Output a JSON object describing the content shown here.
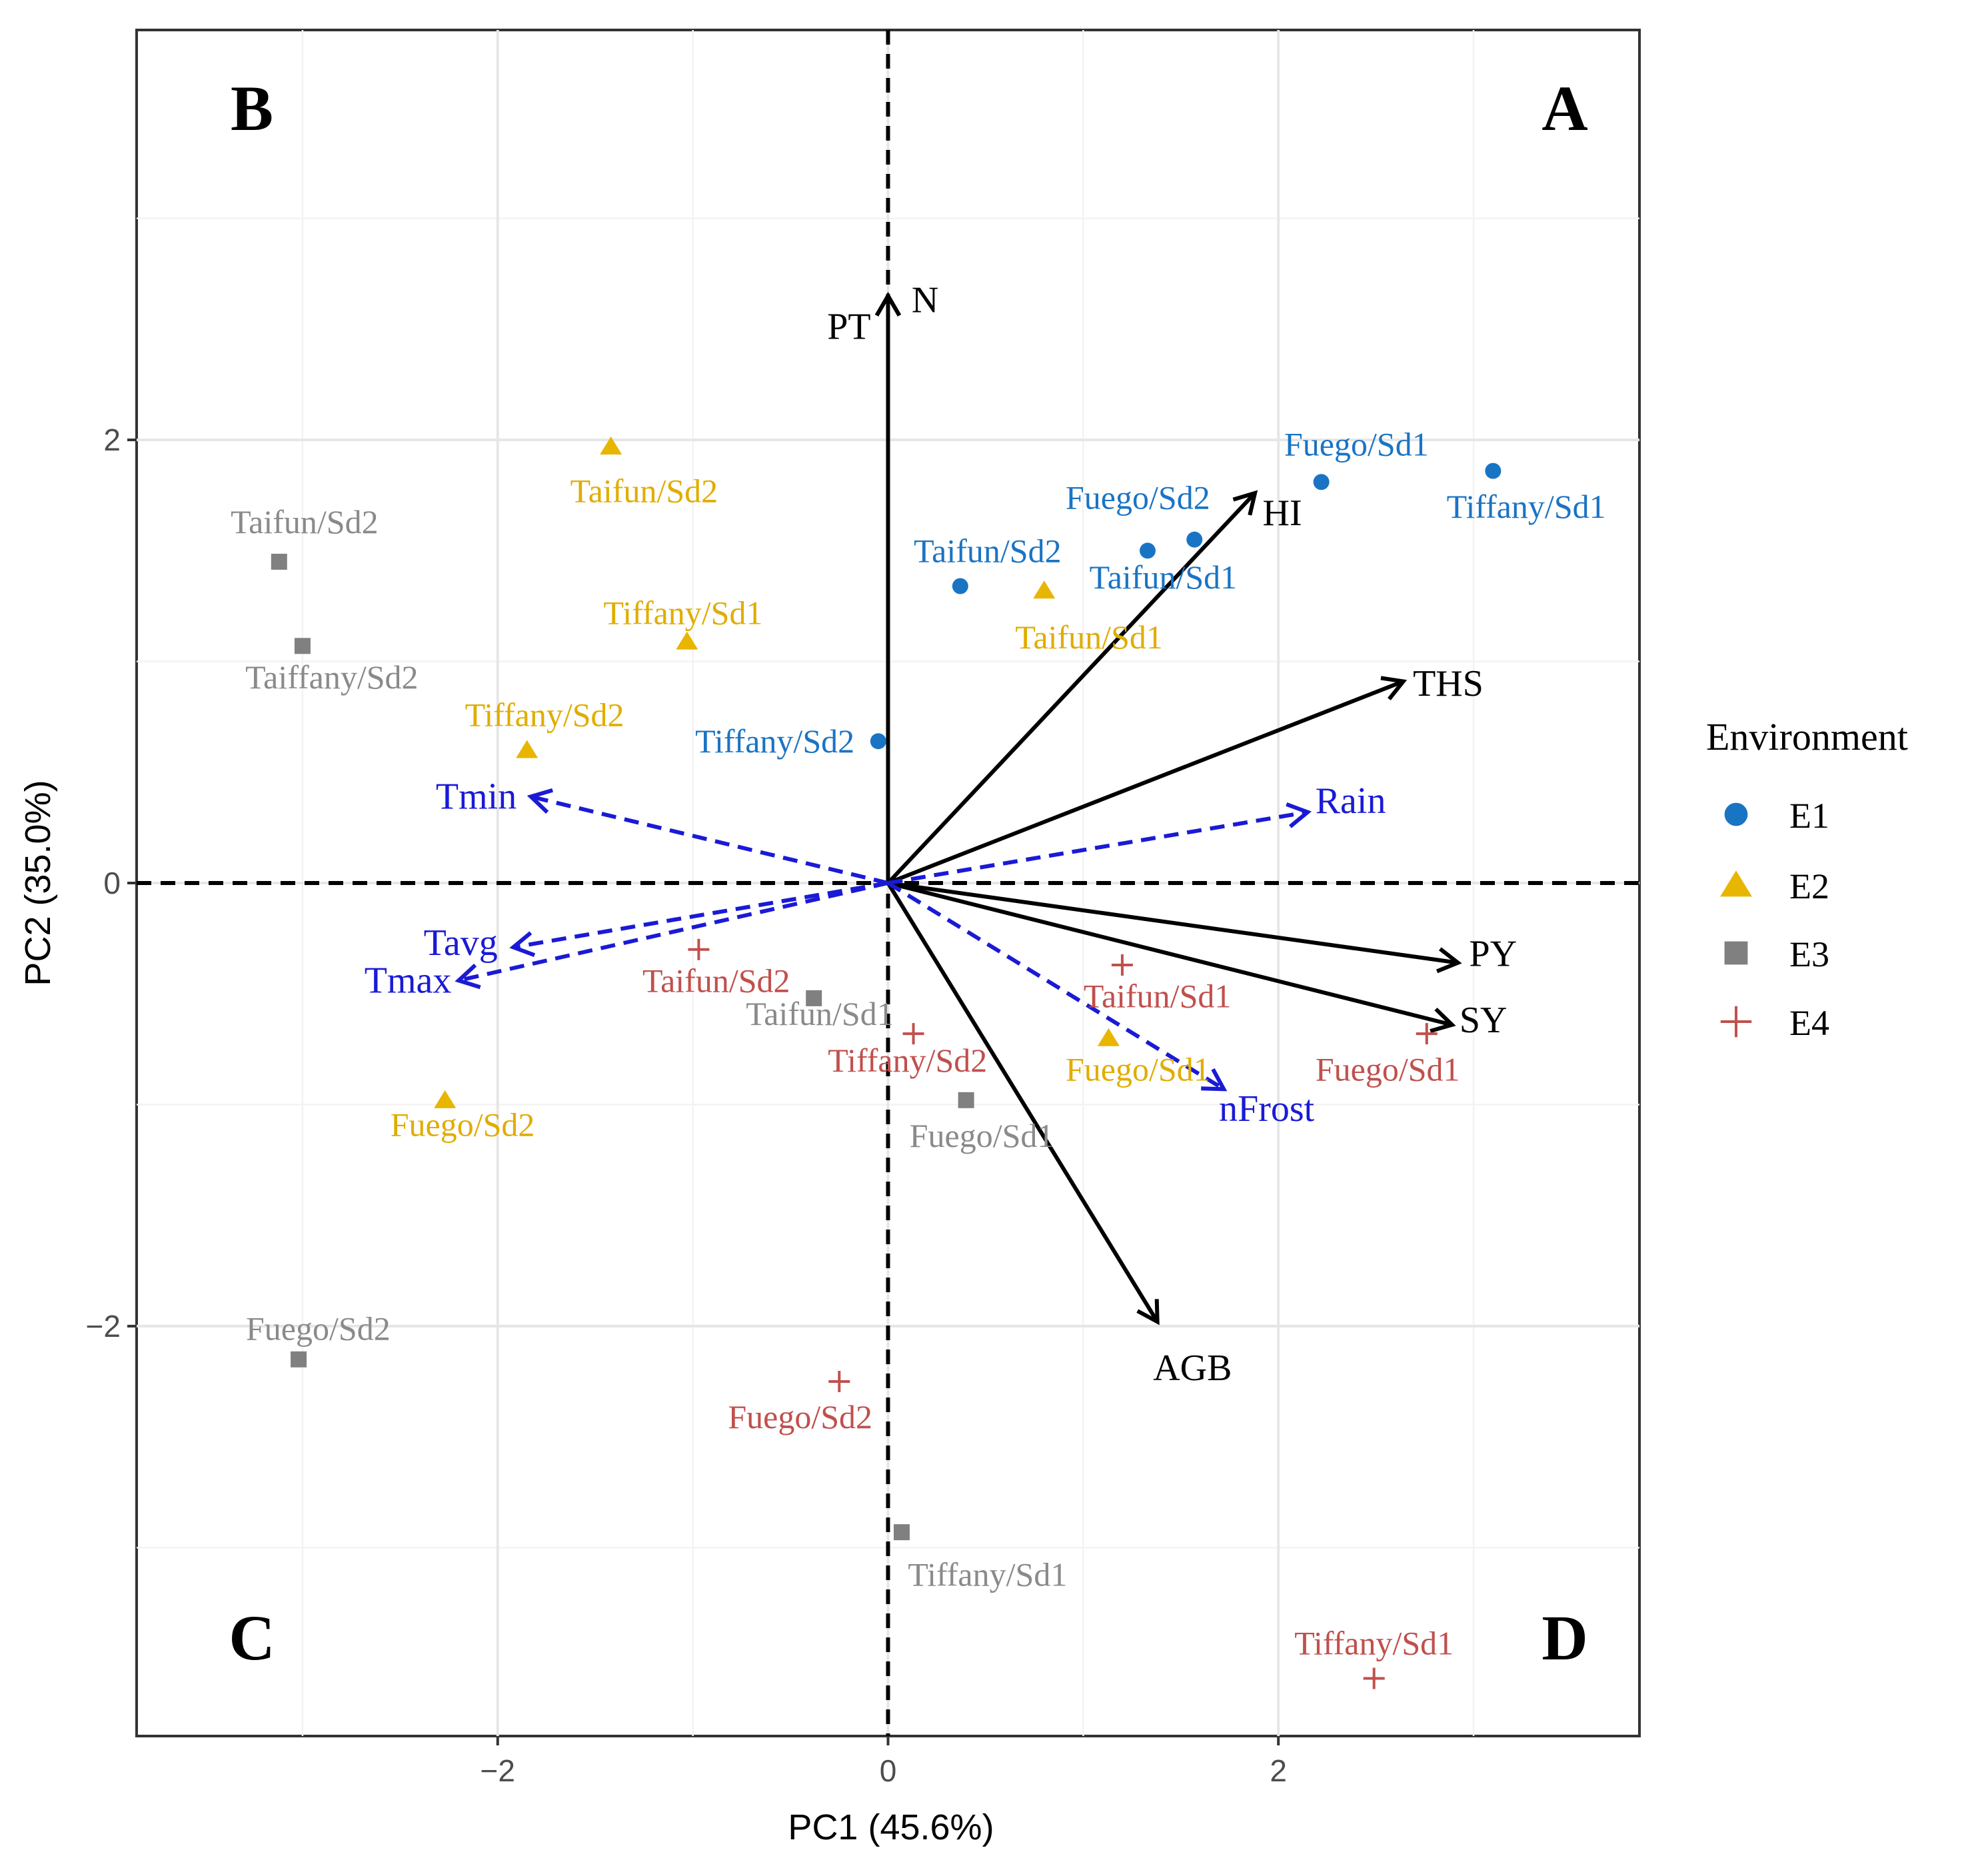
{
  "chart_data": {
    "type": "scatter",
    "subtype": "pca-biplot",
    "xlabel": "PC1 (45.6%)",
    "ylabel": "PC2 (35.0%)",
    "xlim": [
      -3.85,
      3.85
    ],
    "ylim": [
      -3.85,
      3.85
    ],
    "xticks": [
      -2,
      0,
      2
    ],
    "yticks": [
      -2,
      0,
      2
    ],
    "xtick_labels": [
      "−2",
      "0",
      "2"
    ],
    "ytick_labels": [
      "−2",
      "0",
      "2"
    ],
    "grid": true,
    "quadrants": [
      {
        "label": "A",
        "corner": "top-right"
      },
      {
        "label": "B",
        "corner": "top-left"
      },
      {
        "label": "C",
        "corner": "bottom-left"
      },
      {
        "label": "D",
        "corner": "bottom-right"
      }
    ],
    "legend": {
      "title": "Environment",
      "position": "right",
      "entries": [
        {
          "name": "E1",
          "marker": "circle",
          "color": "#1a74c4"
        },
        {
          "name": "E2",
          "marker": "triangle",
          "color": "#e8b500"
        },
        {
          "name": "E3",
          "marker": "square",
          "color": "#808080"
        },
        {
          "name": "E4",
          "marker": "plus",
          "color": "#c0504d"
        }
      ]
    },
    "series": [
      {
        "name": "E1",
        "marker": "circle",
        "color": "#1a74c4",
        "text_color": "#1a74c4",
        "points": [
          {
            "x": 2.22,
            "y": 1.81,
            "label": "Fuego/Sd1",
            "label_x": 2.4,
            "label_y": 1.98
          },
          {
            "x": 3.1,
            "y": 1.86,
            "label": "Tiffany/Sd1",
            "label_x": 3.27,
            "label_y": 1.7
          },
          {
            "x": 1.57,
            "y": 1.55,
            "label": "Fuego/Sd2",
            "label_x": 1.28,
            "label_y": 1.74
          },
          {
            "x": 1.33,
            "y": 1.5,
            "label": "Taifun/Sd1",
            "label_x": 1.41,
            "label_y": 1.38
          },
          {
            "x": 0.37,
            "y": 1.34,
            "label": "Taifun/Sd2",
            "label_x": 0.51,
            "label_y": 1.5
          },
          {
            "x": -0.05,
            "y": 0.64,
            "label": "Tiffany/Sd2",
            "label_x": -0.58,
            "label_y": 0.64
          }
        ]
      },
      {
        "name": "E2",
        "marker": "triangle",
        "color": "#e8b500",
        "text_color": "#e0ad00",
        "points": [
          {
            "x": -1.42,
            "y": 1.97,
            "label": "Taifun/Sd2",
            "label_x": -1.25,
            "label_y": 1.77
          },
          {
            "x": -1.03,
            "y": 1.09,
            "label": "Tiffany/Sd1",
            "label_x": -1.05,
            "label_y": 1.22
          },
          {
            "x": -1.85,
            "y": 0.6,
            "label": "Tiffany/Sd2",
            "label_x": -1.76,
            "label_y": 0.76
          },
          {
            "x": 0.8,
            "y": 1.32,
            "label": "Taifun/Sd1",
            "label_x": 1.03,
            "label_y": 1.11
          },
          {
            "x": 1.13,
            "y": -0.7,
            "label": "Fuego/Sd1",
            "label_x": 1.28,
            "label_y": -0.84
          },
          {
            "x": -2.27,
            "y": -0.98,
            "label": "Fuego/Sd2",
            "label_x": -2.18,
            "label_y": -1.09
          }
        ]
      },
      {
        "name": "E3",
        "marker": "square",
        "color": "#808080",
        "text_color": "#8a8a8a",
        "points": [
          {
            "x": -3.12,
            "y": 1.45,
            "label": "Taifun/Sd2",
            "label_x": -2.99,
            "label_y": 1.63
          },
          {
            "x": -3.0,
            "y": 1.07,
            "label": "Taiffany/Sd2",
            "label_x": -2.85,
            "label_y": 0.93
          },
          {
            "x": -0.38,
            "y": -0.52,
            "label": "Taifun/Sd1",
            "label_x": -0.35,
            "label_y": -0.59
          },
          {
            "x": 0.4,
            "y": -0.98,
            "label": "Fuego/Sd1",
            "label_x": 0.48,
            "label_y": -1.14
          },
          {
            "x": -3.02,
            "y": -2.15,
            "label": "Fuego/Sd2",
            "label_x": -2.92,
            "label_y": -2.01
          },
          {
            "x": 0.07,
            "y": -2.93,
            "label": "Tiffany/Sd1",
            "label_x": 0.51,
            "label_y": -3.12
          }
        ]
      },
      {
        "name": "E4",
        "marker": "plus",
        "color": "#c0504d",
        "text_color": "#c0504d",
        "points": [
          {
            "x": -0.97,
            "y": -0.3,
            "label": "Taifun/Sd2",
            "label_x": -0.88,
            "label_y": -0.44
          },
          {
            "x": 1.2,
            "y": -0.37,
            "label": "Taifun/Sd1",
            "label_x": 1.38,
            "label_y": -0.51
          },
          {
            "x": 0.13,
            "y": -0.68,
            "label": "Tiffany/Sd2",
            "label_x": 0.1,
            "label_y": -0.8
          },
          {
            "x": 2.76,
            "y": -0.68,
            "label": "Fuego/Sd1",
            "label_x": 2.56,
            "label_y": -0.84
          },
          {
            "x": -0.25,
            "y": -2.25,
            "label": "Fuego/Sd2",
            "label_x": -0.45,
            "label_y": -2.41
          },
          {
            "x": 2.49,
            "y": -3.59,
            "label": "Tiffany/Sd1",
            "label_x": 2.49,
            "label_y": -3.43
          }
        ]
      }
    ],
    "vectors": [
      {
        "name": "PT",
        "group": "trait",
        "style": "solid",
        "color": "#000000",
        "x": 0.0,
        "y": 2.65,
        "label_x": -0.2,
        "label_y": 2.51
      },
      {
        "name": "N",
        "group": "trait",
        "style": "solid",
        "color": "#000000",
        "x": 0.0,
        "y": 2.65,
        "label_x": 0.19,
        "label_y": 2.63
      },
      {
        "name": "HI",
        "group": "trait",
        "style": "solid",
        "color": "#000000",
        "x": 1.88,
        "y": 1.76,
        "label_x": 2.02,
        "label_y": 1.67
      },
      {
        "name": "THS",
        "group": "trait",
        "style": "solid",
        "color": "#000000",
        "x": 2.64,
        "y": 0.91,
        "label_x": 2.87,
        "label_y": 0.9
      },
      {
        "name": "PY",
        "group": "trait",
        "style": "solid",
        "color": "#000000",
        "x": 2.92,
        "y": -0.36,
        "label_x": 3.1,
        "label_y": -0.32
      },
      {
        "name": "SY",
        "group": "trait",
        "style": "solid",
        "color": "#000000",
        "x": 2.89,
        "y": -0.64,
        "label_x": 3.05,
        "label_y": -0.62
      },
      {
        "name": "AGB",
        "group": "trait",
        "style": "solid",
        "color": "#000000",
        "x": 1.38,
        "y": -1.98,
        "label_x": 1.56,
        "label_y": -2.19
      },
      {
        "name": "Rain",
        "group": "climate",
        "style": "dashed",
        "color": "#1a1ad6",
        "x": 2.15,
        "y": 0.32,
        "label_x": 2.37,
        "label_y": 0.37
      },
      {
        "name": "nFrost",
        "group": "climate",
        "style": "dashed",
        "color": "#1a1ad6",
        "x": 1.72,
        "y": -0.93,
        "label_x": 1.94,
        "label_y": -1.02
      },
      {
        "name": "Tmin",
        "group": "climate",
        "style": "dashed",
        "color": "#1a1ad6",
        "x": -1.83,
        "y": 0.39,
        "label_x": -2.11,
        "label_y": 0.39
      },
      {
        "name": "Tavg",
        "group": "climate",
        "style": "dashed",
        "color": "#1a1ad6",
        "x": -1.92,
        "y": -0.29,
        "label_x": -2.19,
        "label_y": -0.27
      },
      {
        "name": "Tmax",
        "group": "climate",
        "style": "dashed",
        "color": "#1a1ad6",
        "x": -2.2,
        "y": -0.44,
        "label_x": -2.46,
        "label_y": -0.44
      }
    ]
  }
}
